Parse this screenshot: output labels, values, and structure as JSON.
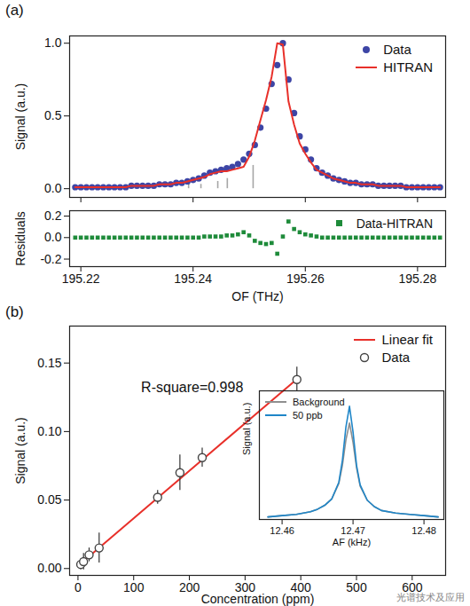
{
  "watermark": "光谱技术及应用",
  "chart_data": [
    {
      "panel_label": "(a)",
      "type": "scatter",
      "ylabel": "Signal (a.u.)",
      "xlim": [
        195.218,
        195.285
      ],
      "xticks": [
        195.22,
        195.24,
        195.26,
        195.28
      ],
      "ylim": [
        -0.06,
        1.05
      ],
      "yticks": [
        {
          "value": 0,
          "label": "0.0"
        },
        {
          "value": 0.5,
          "label": "0.5"
        },
        {
          "value": 1,
          "label": "1.0"
        }
      ],
      "tick_labels": "y",
      "legend": "top-right",
      "x": [
        195.219,
        195.22,
        195.221,
        195.222,
        195.223,
        195.224,
        195.225,
        195.226,
        195.227,
        195.228,
        195.229,
        195.23,
        195.231,
        195.232,
        195.233,
        195.234,
        195.235,
        195.236,
        195.237,
        195.238,
        195.239,
        195.24,
        195.241,
        195.242,
        195.243,
        195.244,
        195.245,
        195.246,
        195.247,
        195.248,
        195.249,
        195.25,
        195.251,
        195.252,
        195.253,
        195.254,
        195.255,
        195.256,
        195.257,
        195.258,
        195.259,
        195.26,
        195.261,
        195.262,
        195.263,
        195.264,
        195.265,
        195.266,
        195.267,
        195.268,
        195.269,
        195.27,
        195.271,
        195.272,
        195.273,
        195.274,
        195.275,
        195.276,
        195.277,
        195.278,
        195.279,
        195.28,
        195.281,
        195.282,
        195.283,
        195.284
      ],
      "series": [
        {
          "name": "Data",
          "type": "scatter",
          "marker": "circle",
          "color": "#3d45a5",
          "values": [
            0.01,
            0.01,
            0.01,
            0.01,
            0.01,
            0.01,
            0.01,
            0.01,
            0.01,
            0.01,
            0.02,
            0.02,
            0.02,
            0.02,
            0.02,
            0.03,
            0.03,
            0.03,
            0.04,
            0.04,
            0.05,
            0.06,
            0.07,
            0.09,
            0.11,
            0.12,
            0.13,
            0.14,
            0.15,
            0.17,
            0.2,
            0.24,
            0.3,
            0.42,
            0.55,
            0.72,
            0.85,
            1.0,
            0.75,
            0.52,
            0.36,
            0.27,
            0.2,
            0.14,
            0.11,
            0.09,
            0.07,
            0.06,
            0.05,
            0.04,
            0.04,
            0.03,
            0.03,
            0.03,
            0.02,
            0.02,
            0.02,
            0.02,
            0.02,
            0.01,
            0.01,
            0.01,
            0.01,
            0.01,
            0.01,
            0.01
          ]
        },
        {
          "name": "HITRAN",
          "type": "line",
          "color": "#e8302a",
          "values": [
            0.01,
            0.01,
            0.01,
            0.01,
            0.01,
            0.01,
            0.01,
            0.01,
            0.01,
            0.01,
            0.02,
            0.02,
            0.02,
            0.02,
            0.02,
            0.03,
            0.03,
            0.03,
            0.04,
            0.04,
            0.05,
            0.06,
            0.07,
            0.08,
            0.1,
            0.11,
            0.12,
            0.12,
            0.13,
            0.14,
            0.15,
            0.22,
            0.33,
            0.47,
            0.61,
            0.77,
            1.0,
            0.99,
            0.6,
            0.44,
            0.31,
            0.24,
            0.18,
            0.13,
            0.11,
            0.09,
            0.07,
            0.06,
            0.05,
            0.04,
            0.04,
            0.03,
            0.03,
            0.03,
            0.02,
            0.02,
            0.02,
            0.02,
            0.02,
            0.01,
            0.01,
            0.01,
            0.01,
            0.01,
            0.01,
            0.01
          ]
        }
      ],
      "sticks": {
        "color": "#a6a6a6",
        "x": [
          195.2392,
          195.2414,
          195.2444,
          195.2461,
          195.2507
        ],
        "values": [
          0.05,
          0.03,
          0.05,
          0.07,
          0.16
        ]
      }
    },
    {
      "type": "scatter",
      "xlabel": "OF (THz)",
      "ylabel": "Residuals",
      "xlim": [
        195.218,
        195.285
      ],
      "xticks": [
        195.22,
        195.24,
        195.26,
        195.28
      ],
      "ylim": [
        -0.27,
        0.25
      ],
      "yticks": [
        {
          "value": -0.2,
          "label": "-0.2"
        },
        {
          "value": 0,
          "label": "0.0"
        },
        0.2
      ],
      "legend": "top-right",
      "x": [
        195.219,
        195.22,
        195.221,
        195.222,
        195.223,
        195.224,
        195.225,
        195.226,
        195.227,
        195.228,
        195.229,
        195.23,
        195.231,
        195.232,
        195.233,
        195.234,
        195.235,
        195.236,
        195.237,
        195.238,
        195.239,
        195.24,
        195.241,
        195.242,
        195.243,
        195.244,
        195.245,
        195.246,
        195.247,
        195.248,
        195.249,
        195.25,
        195.251,
        195.252,
        195.253,
        195.254,
        195.255,
        195.256,
        195.257,
        195.258,
        195.259,
        195.26,
        195.261,
        195.262,
        195.263,
        195.264,
        195.265,
        195.266,
        195.267,
        195.268,
        195.269,
        195.27,
        195.271,
        195.272,
        195.273,
        195.274,
        195.275,
        195.276,
        195.277,
        195.278,
        195.279,
        195.28,
        195.281,
        195.282,
        195.283,
        195.284
      ],
      "series": [
        {
          "name": "Data-HITRAN",
          "type": "scatter",
          "marker": "square",
          "color": "#1e8b3a",
          "values": [
            0,
            0,
            0,
            0,
            0,
            0,
            0,
            0,
            0,
            0,
            0,
            0,
            0,
            0,
            0,
            0,
            0,
            0,
            0,
            0,
            0,
            0,
            0,
            0.01,
            0.01,
            0.01,
            0.01,
            0.02,
            0.02,
            0.03,
            0.05,
            0.02,
            -0.03,
            -0.05,
            -0.06,
            -0.05,
            -0.15,
            0.01,
            0.15,
            0.08,
            0.05,
            0.03,
            0.02,
            0.01,
            0,
            0,
            0,
            0,
            0,
            0,
            0,
            0,
            0,
            0,
            0,
            0,
            0,
            0,
            0,
            0,
            0,
            0,
            0,
            0,
            0,
            0
          ]
        }
      ]
    },
    {
      "panel_label": "(b)",
      "type": "scatter",
      "xlabel": "Concentration (ppm)",
      "ylabel": "Signal (a.u.)",
      "xlim": [
        -15,
        660
      ],
      "xticks": [
        0,
        100,
        200,
        300,
        400,
        500,
        600
      ],
      "ylim": [
        -0.005,
        0.177
      ],
      "yticks": [
        {
          "value": 0,
          "label": "0.00"
        },
        {
          "value": 0.05,
          "label": "0.05"
        },
        {
          "value": 0.1,
          "label": "0.10"
        },
        {
          "value": 0.15,
          "label": "0.15"
        }
      ],
      "legend": "top-right",
      "annotations": [
        {
          "text": "R-square=0.998",
          "x": 205,
          "y": 0.132
        }
      ],
      "series": [
        {
          "name": "Linear fit",
          "type": "line",
          "color": "#e8302a",
          "x": [
            0,
            395
          ],
          "values": [
            0.002,
            0.139
          ]
        },
        {
          "name": "Data",
          "type": "scatter",
          "marker": "open circle",
          "color": "#444444",
          "x": [
            5,
            10,
            20,
            38,
            143,
            183,
            223,
            393
          ],
          "values": [
            0.003,
            0.005,
            0.01,
            0.015,
            0.052,
            0.07,
            0.081,
            0.138
          ],
          "errors": [
            0.004,
            0.006,
            0.005,
            0.011,
            0.005,
            0.013,
            0.007,
            0.009
          ]
        }
      ]
    },
    {
      "type": "line",
      "xlabel": "AF (kHz)",
      "ylabel": "Signal (a.u.)",
      "xlim": [
        12.4568,
        12.4828
      ],
      "xticks": [
        12.46,
        12.47,
        12.48
      ],
      "ylim": [
        0,
        1
      ],
      "tick_labels": "x",
      "legend": "top-left",
      "x": [
        12.458,
        12.46,
        12.462,
        12.464,
        12.465,
        12.466,
        12.467,
        12.468,
        12.4685,
        12.469,
        12.4695,
        12.47,
        12.4705,
        12.471,
        12.472,
        12.473,
        12.474,
        12.476,
        12.478,
        12.48,
        12.482
      ],
      "series": [
        {
          "name": "Background",
          "color": "#8f8f8f",
          "values": [
            0.02,
            0.03,
            0.04,
            0.06,
            0.08,
            0.11,
            0.16,
            0.28,
            0.42,
            0.62,
            0.75,
            0.6,
            0.4,
            0.26,
            0.15,
            0.1,
            0.07,
            0.05,
            0.04,
            0.03,
            0.02
          ]
        },
        {
          "name": "50 ppb",
          "color": "#1f86c8",
          "values": [
            0.02,
            0.03,
            0.04,
            0.06,
            0.08,
            0.11,
            0.16,
            0.29,
            0.46,
            0.72,
            0.88,
            0.68,
            0.42,
            0.27,
            0.15,
            0.1,
            0.07,
            0.05,
            0.04,
            0.03,
            0.02
          ]
        }
      ]
    }
  ]
}
